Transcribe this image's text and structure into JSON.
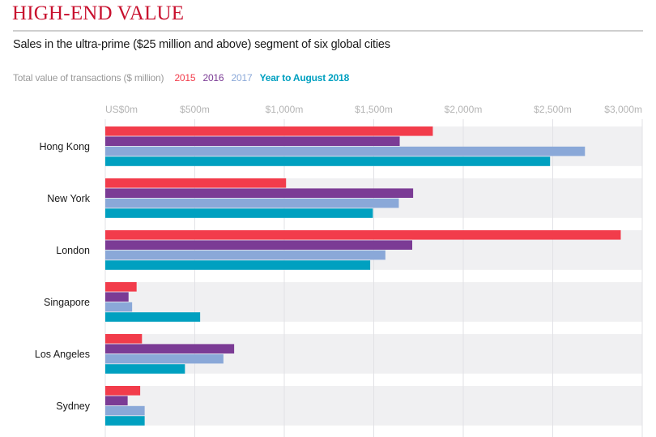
{
  "header": {
    "title": "HIGH-END VALUE",
    "subtitle": "Sales in the ultra-prime ($25 million and above) segment of six global cities"
  },
  "legend": {
    "caption": "Total value of transactions ($ million)",
    "items": [
      {
        "label": "2015",
        "color": "#f23c4b"
      },
      {
        "label": "2016",
        "color": "#7b3b95"
      },
      {
        "label": "2017",
        "color": "#8aa8d8"
      },
      {
        "label": "Year to August 2018",
        "color": "#00a0c0"
      }
    ]
  },
  "chart_data": {
    "type": "bar",
    "orientation": "horizontal",
    "title": "HIGH-END VALUE",
    "subtitle": "Sales in the ultra-prime ($25 million and above) segment of six global cities",
    "xlabel": "Total value of transactions ($ million)",
    "ylabel": "",
    "xlim": [
      0,
      3000
    ],
    "grid": true,
    "legend_position": "top-left",
    "ticks": [
      {
        "value": 0,
        "label": "US$0m"
      },
      {
        "value": 500,
        "label": "$500m"
      },
      {
        "value": 1000,
        "label": "$1,000m"
      },
      {
        "value": 1500,
        "label": "$1,500m"
      },
      {
        "value": 2000,
        "label": "$2,000m"
      },
      {
        "value": 2500,
        "label": "$2,500m"
      },
      {
        "value": 3000,
        "label": "$3,000m"
      }
    ],
    "categories": [
      "Hong Kong",
      "New York",
      "London",
      "Singapore",
      "Los Angeles",
      "Sydney"
    ],
    "series": [
      {
        "name": "2015",
        "color": "#f23c4b",
        "values": [
          1830,
          1010,
          2880,
          175,
          205,
          195
        ]
      },
      {
        "name": "2016",
        "color": "#7b3b95",
        "values": [
          1645,
          1720,
          1715,
          130,
          720,
          125
        ]
      },
      {
        "name": "2017",
        "color": "#8aa8d8",
        "values": [
          2680,
          1640,
          1565,
          150,
          660,
          220
        ]
      },
      {
        "name": "Year to August 2018",
        "color": "#00a0c0",
        "values": [
          2485,
          1495,
          1480,
          530,
          445,
          220
        ]
      }
    ]
  }
}
